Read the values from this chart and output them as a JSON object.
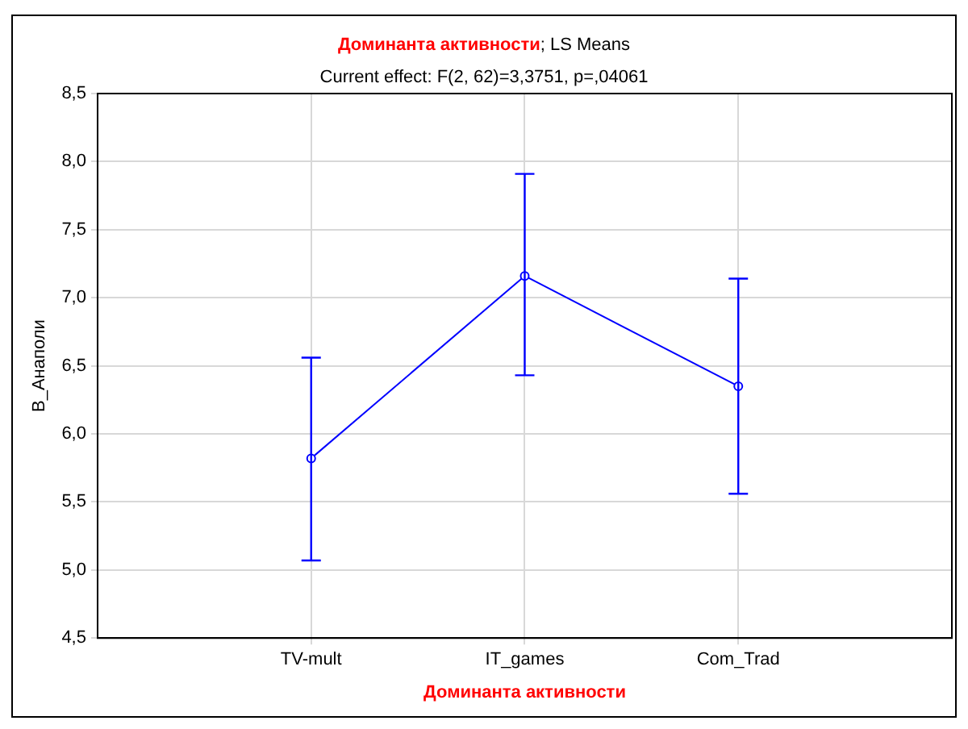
{
  "chart_data": {
    "type": "line",
    "title": "Доминанта активности; LS Means",
    "subtitle": "Current effect: F(2, 62)=3,3751, p=,04061",
    "xlabel": "Доминанта активности",
    "ylabel": "В_Анаполи",
    "categories": [
      "TV-mult",
      "IT_games",
      "Com_Trad"
    ],
    "series": [
      {
        "color": "#0000ff",
        "values": [
          5.82,
          7.16,
          6.35
        ],
        "errors": [
          [
            5.07,
            6.56
          ],
          [
            6.43,
            7.91
          ],
          [
            5.56,
            7.14
          ]
        ]
      }
    ],
    "ylim": [
      4.5,
      8.5
    ],
    "yticks": [
      {
        "value": 4.5,
        "label": "4,5"
      },
      {
        "value": 5,
        "label": "5,0"
      },
      {
        "value": 5.5,
        "label": "5,5"
      },
      {
        "value": 6,
        "label": "6,0"
      },
      {
        "value": 6.5,
        "label": "6,5"
      },
      {
        "value": 7,
        "label": "7,0"
      },
      {
        "value": 7.5,
        "label": "7,5"
      },
      {
        "value": 8,
        "label": "8,0"
      },
      {
        "value": 8.5,
        "label": "8,5"
      }
    ],
    "grid": true,
    "legend": false,
    "marker": "circle",
    "line_style": "solid"
  }
}
